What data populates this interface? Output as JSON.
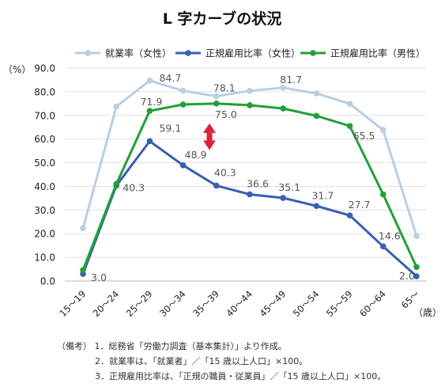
{
  "chart_data": {
    "type": "line",
    "title": "L 字カーブの状況",
    "ylabel": "（%）",
    "xunit": "（歳）",
    "ylim": [
      0,
      90
    ],
    "yticks": [
      "0.0",
      "10.0",
      "20.0",
      "30.0",
      "40.0",
      "50.0",
      "60.0",
      "70.0",
      "80.0",
      "90.0"
    ],
    "categories": [
      "15～19",
      "20～24",
      "25～29",
      "30～34",
      "35～39",
      "40～44",
      "45～49",
      "50～54",
      "55～59",
      "60～64",
      "65～"
    ],
    "series": [
      {
        "name": "就業率（女性）",
        "color": "#b8cfe4",
        "values": [
          22.3,
          73.7,
          84.7,
          80.4,
          78.1,
          80.4,
          81.7,
          79.3,
          74.9,
          63.8,
          19.0
        ],
        "labels": [
          null,
          null,
          "84.7",
          null,
          "78.1",
          null,
          "81.7",
          null,
          null,
          null,
          null
        ]
      },
      {
        "name": "正規雇用比率（女性）",
        "color": "#3a5fb0",
        "values": [
          3.0,
          40.3,
          59.1,
          48.9,
          40.3,
          36.6,
          35.1,
          31.7,
          27.7,
          14.6,
          2.0
        ],
        "labels": [
          "3.0",
          "40.3",
          "59.1",
          "48.9",
          "40.3",
          "36.6",
          "35.1",
          "31.7",
          "27.7",
          "14.6",
          "2.0"
        ]
      },
      {
        "name": "正規雇用比率（男性）",
        "color": "#22a038",
        "values": [
          4.6,
          41.0,
          71.9,
          74.6,
          75.0,
          74.3,
          72.9,
          69.8,
          65.5,
          36.6,
          5.9
        ],
        "labels": [
          null,
          null,
          "71.9",
          null,
          "75.0",
          null,
          null,
          null,
          "65.5",
          null,
          null
        ]
      }
    ],
    "gap_arrow_color": "#e0203a",
    "grid": true,
    "legend_position": "top"
  },
  "notes": {
    "prefix": "（備考）",
    "items": [
      "1．総務省「労働力調査（基本集計）」より作成。",
      "2．就業率は、「就業者」／「15 歳以上人口」×100。",
      "3．正規雇用比率は、「正規の職員・従業員」／「15 歳以上人口」×100。"
    ]
  }
}
